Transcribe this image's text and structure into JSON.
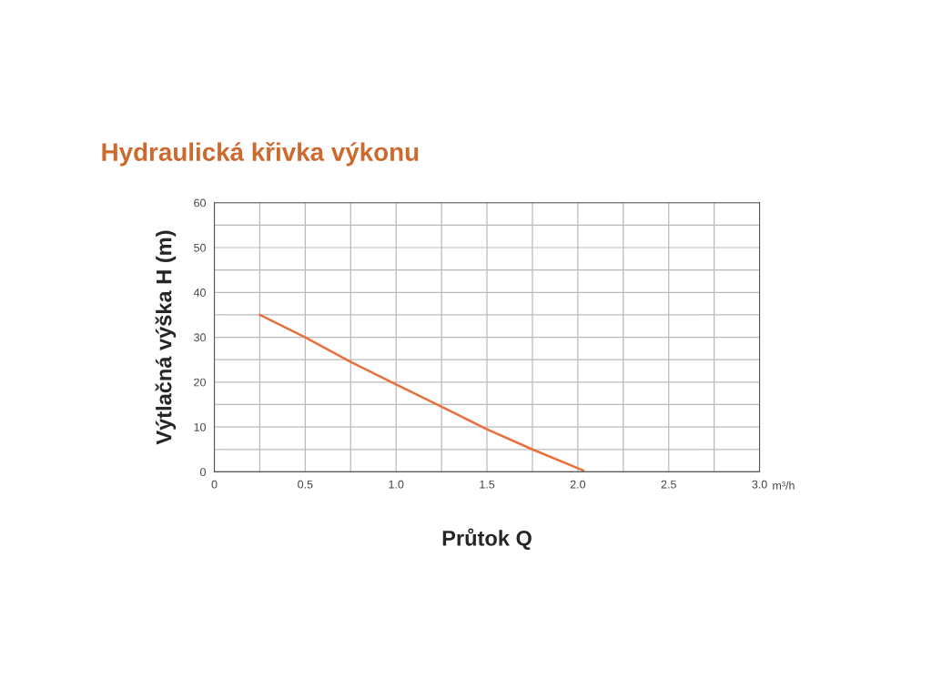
{
  "chart_data": {
    "type": "line",
    "title": "Hydraulická křivka výkonu",
    "xlabel": "Průtok Q",
    "ylabel": "Výtlačná výška H (m)",
    "annotations": [
      "m³/h"
    ],
    "x": [
      0.25,
      0.5,
      0.75,
      1.0,
      1.25,
      1.5,
      1.75,
      2.03
    ],
    "series": [
      {
        "color": "#e8703a",
        "values": [
          35,
          30,
          24.5,
          19.5,
          14.5,
          9.5,
          5,
          0.3
        ]
      }
    ],
    "xlim": [
      0,
      3
    ],
    "ylim": [
      0,
      60
    ],
    "xticks": [
      0,
      {
        "value": 0.25,
        "label": null
      },
      0.5,
      {
        "value": 0.75,
        "label": null
      },
      {
        "value": 1.0,
        "label": "1.0"
      },
      {
        "value": 1.25,
        "label": null
      },
      1.5,
      {
        "value": 1.75,
        "label": null
      },
      {
        "value": 2.0,
        "label": "2.0"
      },
      {
        "value": 2.25,
        "label": null
      },
      2.5,
      {
        "value": 2.75,
        "label": null
      },
      {
        "value": 3.0,
        "label": "3.0"
      }
    ],
    "yticks": [
      0,
      {
        "value": 5,
        "label": null
      },
      10,
      {
        "value": 15,
        "label": null
      },
      20,
      {
        "value": 25,
        "label": null
      },
      30,
      {
        "value": 35,
        "label": null
      },
      40,
      {
        "value": 45,
        "label": null
      },
      50,
      {
        "value": 55,
        "label": null
      },
      60
    ],
    "grid": true,
    "marker": "none",
    "line_style": "solid",
    "legend": false
  }
}
